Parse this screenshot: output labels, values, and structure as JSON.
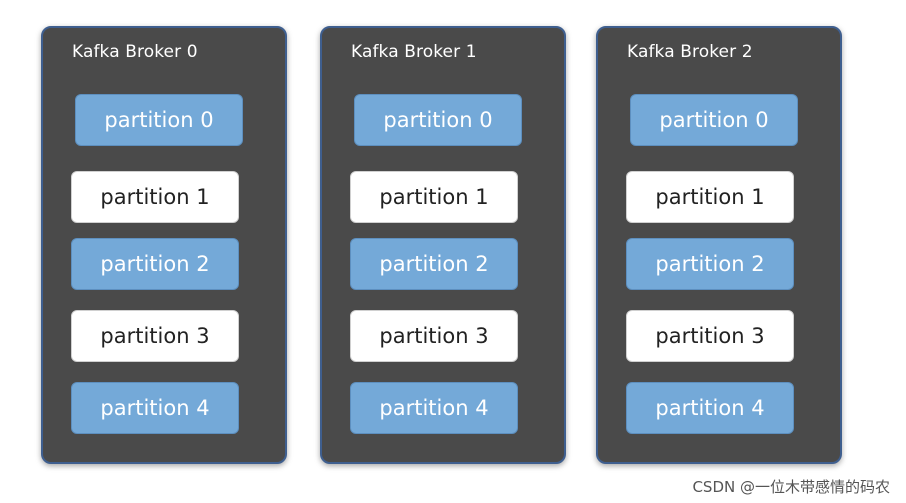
{
  "brokers": [
    {
      "title": "Kafka Broker 0",
      "partitions": [
        "partition 0",
        "partition 1",
        "partition 2",
        "partition 3",
        "partition 4"
      ]
    },
    {
      "title": "Kafka Broker 1",
      "partitions": [
        "partition 0",
        "partition 1",
        "partition 2",
        "partition 3",
        "partition 4"
      ]
    },
    {
      "title": "Kafka Broker 2",
      "partitions": [
        "partition 0",
        "partition 1",
        "partition 2",
        "partition 3",
        "partition 4"
      ]
    }
  ],
  "watermark": "CSDN @一位木带感情的码农",
  "colors": {
    "broker_bg": "#4a4a4a",
    "partition_blue": "#74a9d8",
    "partition_white": "#ffffff"
  }
}
